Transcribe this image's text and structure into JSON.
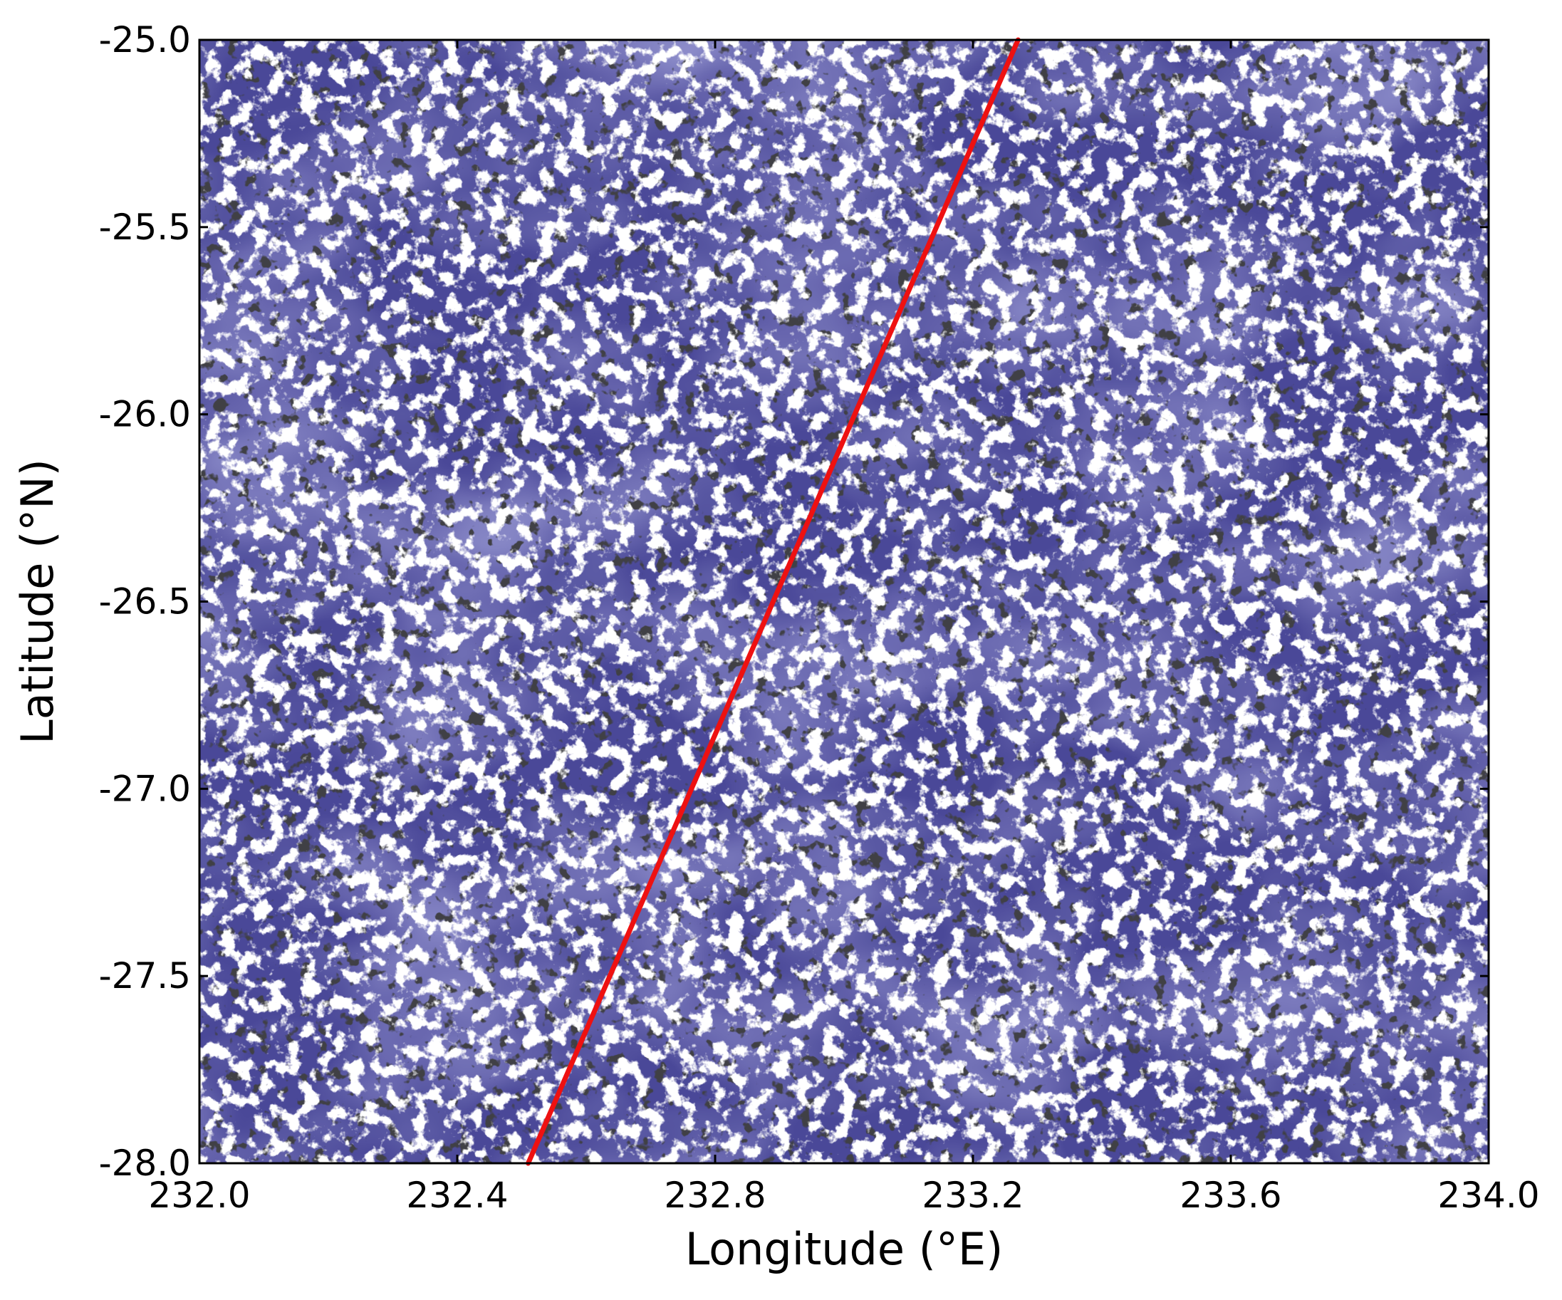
{
  "chart_data": {
    "type": "image",
    "xlabel": "Longitude (°E)",
    "ylabel": "Latitude (°N)",
    "xlim": [
      232.0,
      234.0
    ],
    "ylim": [
      -28.0,
      -25.0
    ],
    "x_ticks": [
      232.0,
      232.4,
      232.8,
      233.2,
      233.6,
      234.0
    ],
    "x_tick_labels": [
      "232.0",
      "232.4",
      "232.8",
      "233.2",
      "233.6",
      "234.0"
    ],
    "y_ticks": [
      -25.0,
      -25.5,
      -26.0,
      -26.5,
      -27.0,
      -27.5,
      -28.0
    ],
    "y_tick_labels": [
      "-25.0",
      "-25.5",
      "-26.0",
      "-26.5",
      "-27.0",
      "-27.5",
      "-28.0"
    ],
    "grid": false,
    "image_description_colors": {
      "background_ocean": "#4a4898",
      "cloud": "#ffffff",
      "shadow": "#111111"
    },
    "track": {
      "color": "#ee1111",
      "points": [
        {
          "x": 232.51,
          "y": -28.0
        },
        {
          "x": 233.27,
          "y": -25.0
        }
      ]
    }
  }
}
